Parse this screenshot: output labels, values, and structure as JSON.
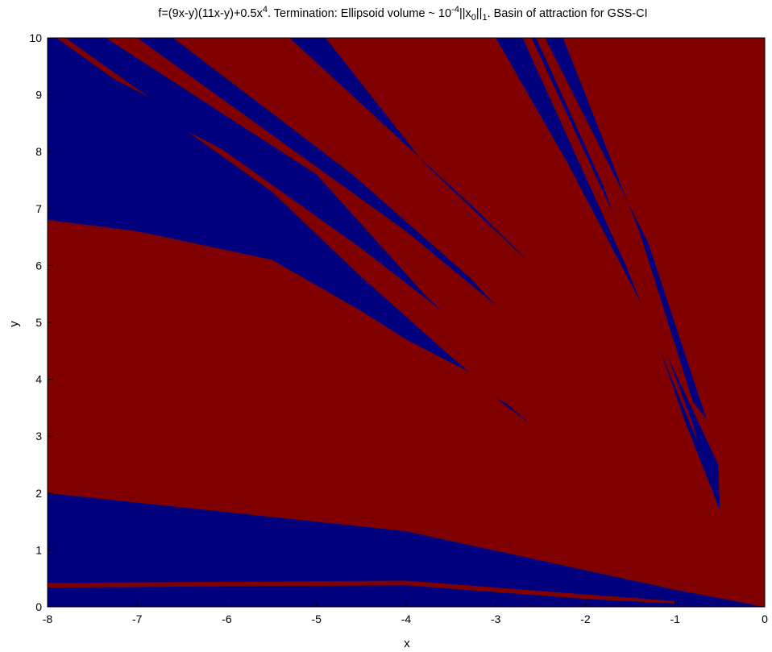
{
  "chart_data": {
    "type": "heatmap",
    "title": {
      "prefix": "f=(9x-y)(11x-y)+0.5x",
      "exp1": "4",
      "mid": ". Termination: Ellipsoid volume ~ 10",
      "exp2": "-4",
      "norm": "||x",
      "sub1": "0",
      "norm_end": "||",
      "sub2": "1",
      "suffix": ". Basin of attraction for GSS-CI"
    },
    "xlabel": "x",
    "ylabel": "y",
    "xlim": [
      -8,
      0
    ],
    "ylim": [
      0,
      10
    ],
    "xticks": [
      "-8",
      "-7",
      "-6",
      "-5",
      "-4",
      "-3",
      "-2",
      "-1",
      "0"
    ],
    "yticks": [
      "0",
      "1",
      "2",
      "3",
      "4",
      "5",
      "6",
      "7",
      "8",
      "9",
      "10"
    ],
    "grid": false,
    "legend": "none",
    "colors": {
      "basin_a": "#800000",
      "basin_b": "#00007f"
    },
    "background_basin": "basin_a",
    "regions": [
      {
        "name": "lower-fan",
        "basin": "basin_b",
        "points": [
          [
            -8,
            0
          ],
          [
            -8,
            2.0
          ],
          [
            -4,
            1.33
          ],
          [
            -1,
            0.3
          ],
          [
            0,
            0
          ]
        ]
      },
      {
        "name": "stripe-low",
        "basin": "basin_a",
        "points": [
          [
            -8,
            0.42
          ],
          [
            -4,
            0.46
          ],
          [
            -2,
            0.22
          ],
          [
            -1,
            0.1
          ],
          [
            -1,
            0.06
          ],
          [
            -2,
            0.14
          ],
          [
            -4,
            0.38
          ],
          [
            -8,
            0.34
          ]
        ]
      },
      {
        "name": "stripe-2",
        "basin": "basin_a",
        "points": [
          [
            -8,
            2.0
          ],
          [
            -8,
            2.7
          ],
          [
            -4,
            1.72
          ],
          [
            -2,
            1.02
          ],
          [
            -1,
            0.5
          ],
          [
            -1,
            0.45
          ],
          [
            -2,
            0.9
          ],
          [
            -4,
            1.52
          ]
        ]
      },
      {
        "name": "stripe-3",
        "basin": "basin_a",
        "points": [
          [
            -8,
            3.02
          ],
          [
            -8,
            3.55
          ],
          [
            -4,
            2.1
          ],
          [
            -2,
            1.2
          ],
          [
            -1,
            0.6
          ],
          [
            -1,
            0.56
          ],
          [
            -2,
            1.12
          ],
          [
            -4,
            1.95
          ]
        ]
      },
      {
        "name": "stripe-4",
        "basin": "basin_a",
        "points": [
          [
            -8,
            3.72
          ],
          [
            -8,
            4.42
          ],
          [
            -4,
            2.78
          ],
          [
            -2,
            1.4
          ],
          [
            -1,
            0.72
          ],
          [
            -1,
            0.68
          ],
          [
            -2,
            1.32
          ],
          [
            -4,
            2.6
          ]
        ]
      },
      {
        "name": "stripe-5",
        "basin": "basin_a",
        "points": [
          [
            -8,
            4.55
          ],
          [
            -8,
            5.7
          ],
          [
            -4,
            3.5
          ],
          [
            -3,
            2.7
          ],
          [
            -2,
            1.6
          ],
          [
            -1,
            0.8
          ],
          [
            -1,
            0.76
          ],
          [
            -2,
            1.52
          ],
          [
            -3,
            2.5
          ],
          [
            -4,
            3.2
          ]
        ]
      },
      {
        "name": "wedge-mid",
        "basin": "basin_b",
        "points": [
          [
            -8,
            6.8
          ],
          [
            -8,
            10
          ],
          [
            -7.9,
            10
          ],
          [
            -5.5,
            7.3
          ],
          [
            -4.5,
            5.8
          ],
          [
            -3.5,
            4.4
          ],
          [
            -2.6,
            3.2
          ],
          [
            -3.2,
            3.9
          ],
          [
            -4.5,
            5.2
          ],
          [
            -5.5,
            6.1
          ],
          [
            -7,
            6.6
          ]
        ]
      },
      {
        "name": "stripe-wedge",
        "basin": "basin_a",
        "points": [
          [
            -8,
            6.2
          ],
          [
            -8,
            6.8
          ],
          [
            -7,
            6.5
          ],
          [
            -5.5,
            5.95
          ],
          [
            -4.5,
            5.1
          ],
          [
            -3.5,
            4.05
          ],
          [
            -2.9,
            3.2
          ],
          [
            -3.5,
            3.8
          ],
          [
            -4.5,
            4.85
          ],
          [
            -5.5,
            5.7
          ],
          [
            -7,
            6.2
          ]
        ]
      },
      {
        "name": "upper-diagonal-1",
        "basin": "basin_b",
        "points": [
          [
            -7.8,
            10
          ],
          [
            -7.35,
            10
          ],
          [
            -5.0,
            7.6
          ],
          [
            -3.8,
            5.5
          ],
          [
            -3.6,
            5.2
          ],
          [
            -4.5,
            6.3
          ]
        ]
      },
      {
        "name": "upper-diagonal-2",
        "basin": "basin_b",
        "points": [
          [
            -7.0,
            10
          ],
          [
            -6.6,
            10
          ],
          [
            -4.6,
            7.6
          ],
          [
            -3.3,
            5.8
          ],
          [
            -3.0,
            5.3
          ],
          [
            -4.0,
            6.6
          ]
        ]
      },
      {
        "name": "upper-diagonal-3",
        "basin": "basin_b",
        "points": [
          [
            -5.3,
            10
          ],
          [
            -4.9,
            10
          ],
          [
            -3.8,
            7.8
          ],
          [
            -2.8,
            6.3
          ],
          [
            -2.65,
            6.1
          ],
          [
            -3.3,
            7.1
          ]
        ]
      },
      {
        "name": "upper-diagonal-4",
        "basin": "basin_b",
        "points": [
          [
            -7.4,
            9.4
          ],
          [
            -6.2,
            8.4
          ],
          [
            -5.0,
            7.3
          ],
          [
            -4.5,
            6.4
          ],
          [
            -4.7,
            6.9
          ],
          [
            -6.0,
            8.0
          ],
          [
            -7.6,
            9.3
          ]
        ]
      },
      {
        "name": "right-fan-1",
        "basin": "basin_b",
        "points": [
          [
            -3.0,
            10
          ],
          [
            -2.55,
            10
          ],
          [
            -1.8,
            7.4
          ],
          [
            -0.9,
            3.3
          ],
          [
            -0.5,
            1.7
          ],
          [
            -0.52,
            2.5
          ],
          [
            -1.2,
            4.8
          ],
          [
            -2.2,
            7.8
          ]
        ]
      },
      {
        "name": "right-fan-2",
        "basin": "basin_b",
        "points": [
          [
            -2.45,
            10
          ],
          [
            -2.25,
            10
          ],
          [
            -1.4,
            6.6
          ],
          [
            -0.8,
            3.6
          ],
          [
            -0.65,
            3.3
          ],
          [
            -1.3,
            6.4
          ]
        ]
      },
      {
        "name": "right-fan-stripe",
        "basin": "basin_a",
        "points": [
          [
            -2.7,
            10
          ],
          [
            -2.6,
            10
          ],
          [
            -1.6,
            6.6
          ],
          [
            -0.8,
            3.2
          ],
          [
            -0.75,
            2.9
          ],
          [
            -1.55,
            6.0
          ]
        ]
      },
      {
        "name": "left-edge-tail",
        "basin": "basin_a",
        "points": [
          [
            -8,
            6.0
          ],
          [
            -6.0,
            5.5
          ],
          [
            -4.0,
            4.45
          ],
          [
            -2.4,
            3.2
          ],
          [
            -2.4,
            3.4
          ],
          [
            -4.0,
            4.7
          ],
          [
            -6.0,
            5.8
          ],
          [
            -8,
            6.4
          ]
        ]
      }
    ]
  }
}
